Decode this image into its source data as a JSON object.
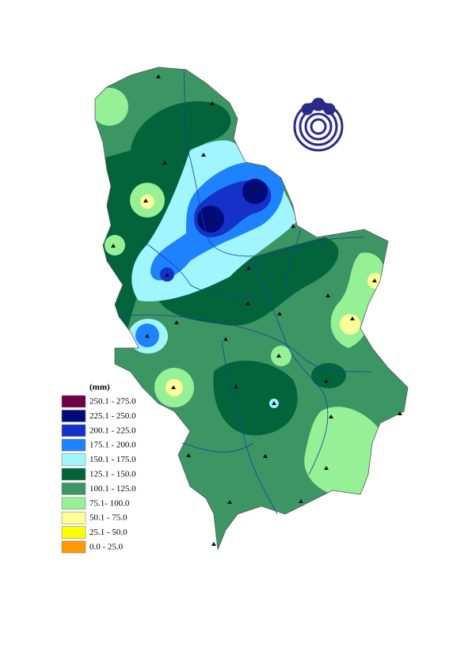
{
  "legend": {
    "unit": "(mm)",
    "items": [
      {
        "label": "250.1 - 275.0",
        "color": "#6e0048"
      },
      {
        "label": "225.1 - 250.0",
        "color": "#000a78"
      },
      {
        "label": "200.1 - 225.0",
        "color": "#1432c8"
      },
      {
        "label": "175.1 - 200.0",
        "color": "#1e82ff"
      },
      {
        "label": "150.1 - 175.0",
        "color": "#a0f5ff"
      },
      {
        "label": "125.1 - 150.0",
        "color": "#03643c"
      },
      {
        "label": "100.1 - 125.0",
        "color": "#3c9664"
      },
      {
        "label": "75.1- 100.0",
        "color": "#96f096"
      },
      {
        "label": "50.1 - 75.0",
        "color": "#ffff9a"
      },
      {
        "label": "25.1 - 50.0",
        "color": "#ffff00"
      },
      {
        "label": "0.0 - 25.0",
        "color": "#ff9a00"
      }
    ]
  }
}
